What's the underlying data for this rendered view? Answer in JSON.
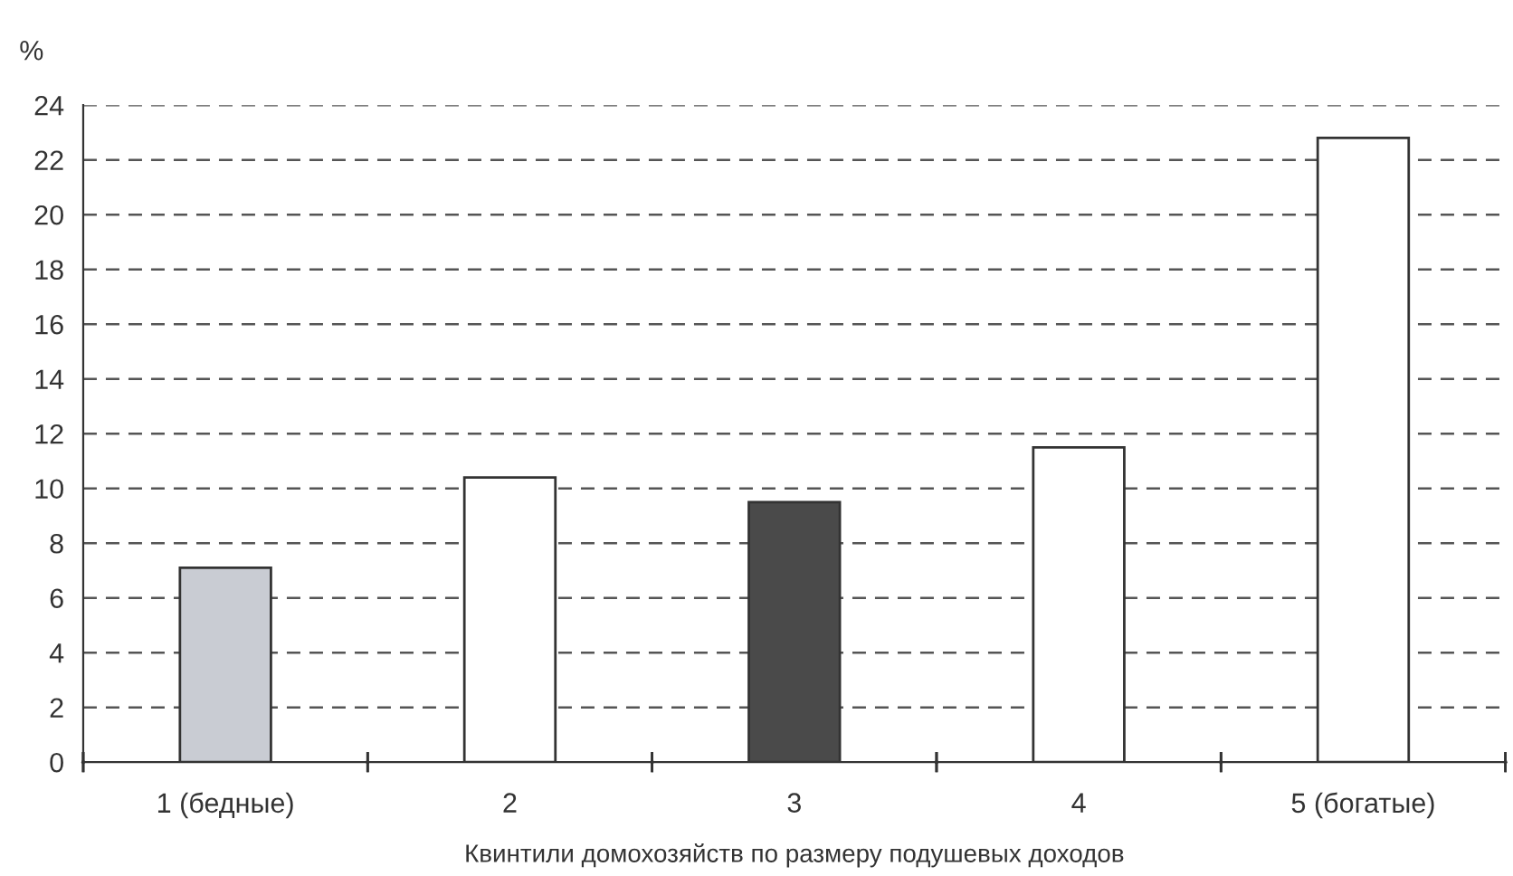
{
  "chart_data": {
    "type": "bar",
    "categories": [
      "1 (бедные)",
      "2",
      "3",
      "4",
      "5 (богатые)"
    ],
    "values": [
      7.1,
      10.4,
      9.5,
      11.5,
      22.8
    ],
    "colors": [
      "#c9ccd3",
      "#ffffff",
      "#4a4a4a",
      "#ffffff",
      "#ffffff"
    ],
    "ylabel": "%",
    "xlabel": "Квинтили домохозяйств по размеру подушевых доходов",
    "ylim": [
      0,
      24
    ],
    "yticks": [
      0,
      2,
      4,
      6,
      8,
      10,
      12,
      14,
      16,
      18,
      20,
      22,
      24
    ],
    "grid": "y"
  }
}
